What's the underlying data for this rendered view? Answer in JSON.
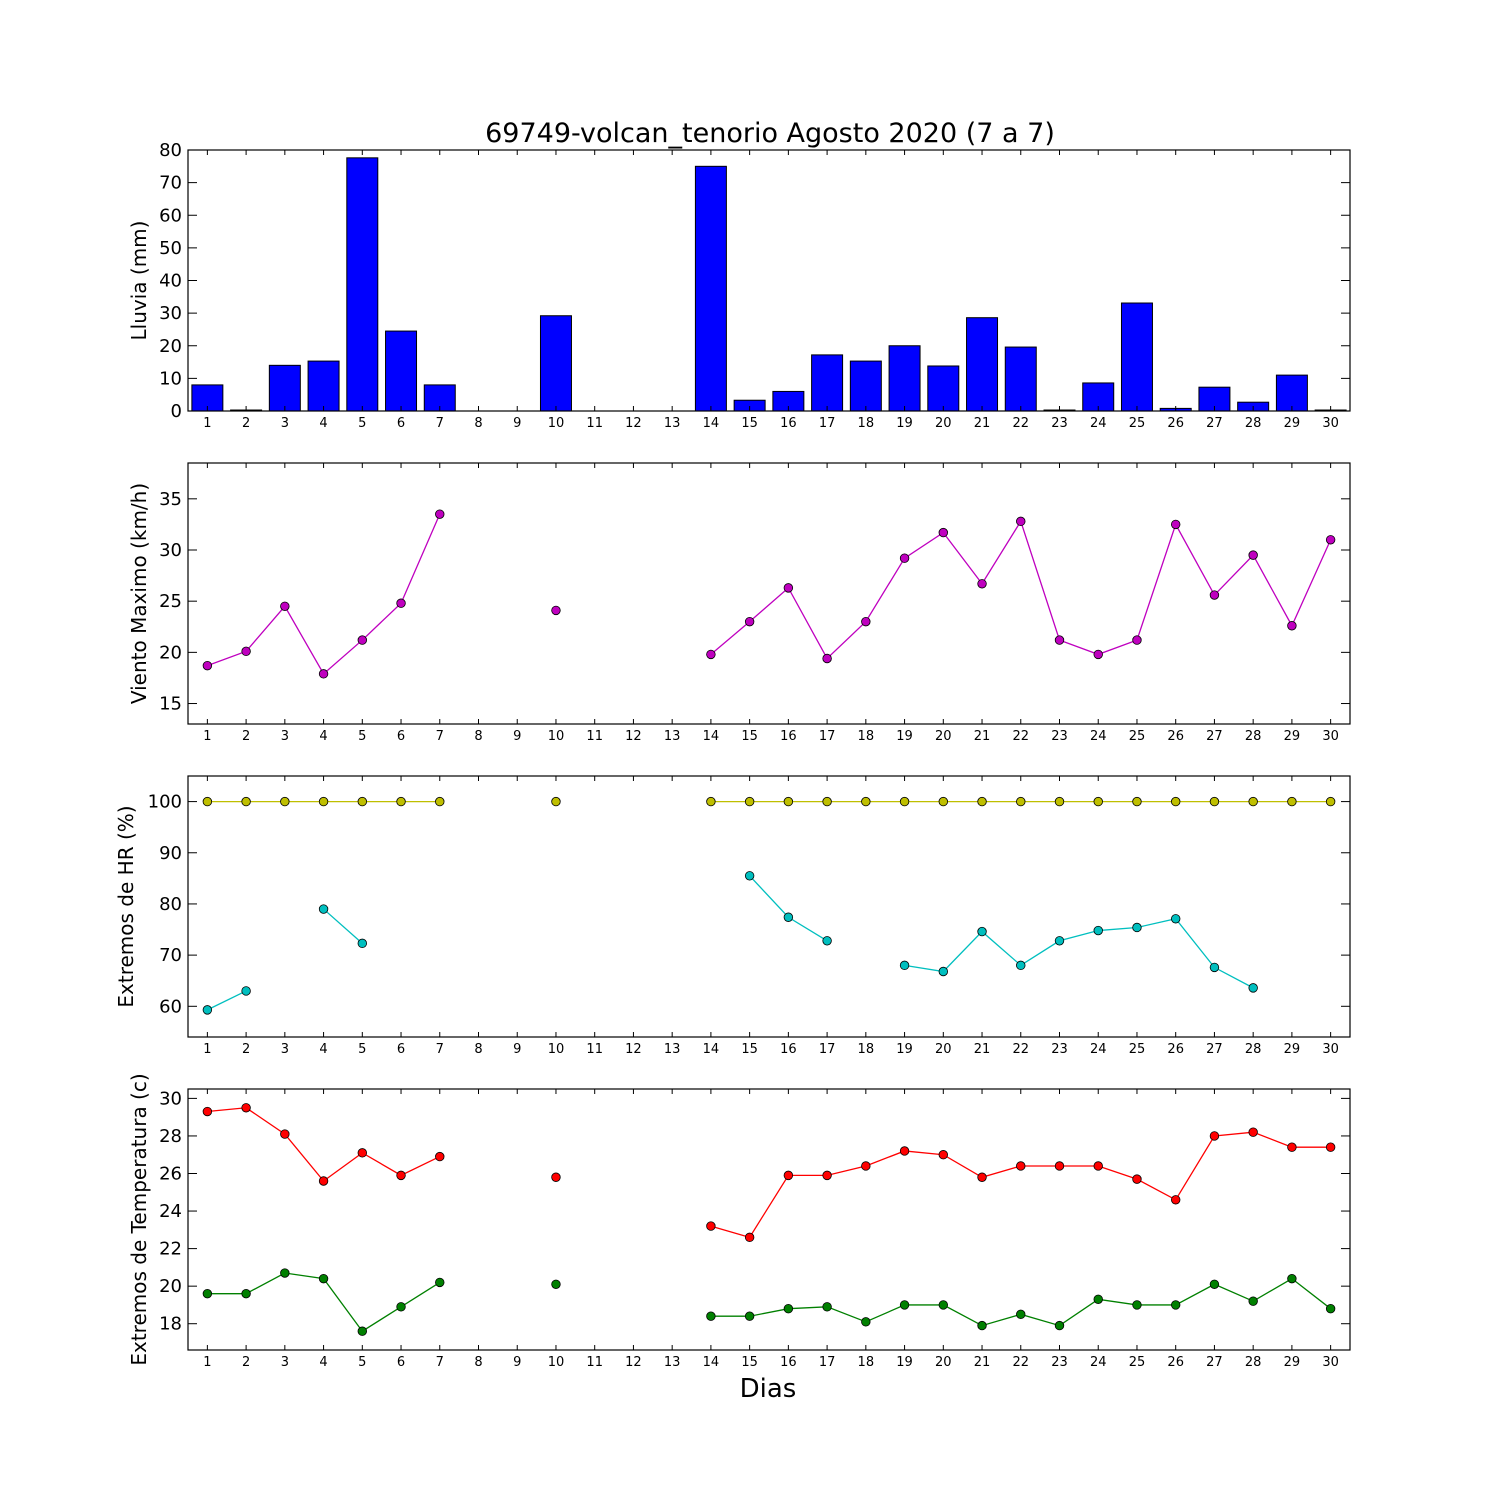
{
  "figure_title": "69749-volcan_tenorio Agosto 2020  (7 a 7)",
  "xlabel": "Dias",
  "colors": {
    "bars": "#0000ff",
    "wind": "#bf00bf",
    "hr_max": "#bfbf00",
    "hr_min": "#00bfbf",
    "temp_max": "#ff0000",
    "temp_min": "#008000"
  },
  "chart_data": [
    {
      "type": "bar",
      "ylabel": "Lluvia (mm)",
      "ylim": [
        0,
        80
      ],
      "yticks": [
        0,
        10,
        20,
        30,
        40,
        50,
        60,
        70,
        80
      ],
      "categories": [
        1,
        2,
        3,
        4,
        5,
        6,
        7,
        8,
        9,
        10,
        11,
        12,
        13,
        14,
        15,
        16,
        17,
        18,
        19,
        20,
        21,
        22,
        23,
        24,
        25,
        26,
        27,
        28,
        29,
        30
      ],
      "series": [
        {
          "color_key": "bars",
          "values": [
            8,
            0.3,
            14,
            15.3,
            77.6,
            24.5,
            8,
            0,
            0,
            29.2,
            0,
            0,
            0,
            75,
            3.3,
            6,
            17.2,
            15.3,
            20,
            13.8,
            28.6,
            19.6,
            0.3,
            8.6,
            33.1,
            0.8,
            7.3,
            2.7,
            11,
            0.3
          ]
        }
      ]
    },
    {
      "type": "line",
      "ylabel": "Viento Maximo (km/h)",
      "ylim": [
        13,
        38.5
      ],
      "yticks": [
        15,
        20,
        25,
        30,
        35
      ],
      "x": [
        1,
        2,
        3,
        4,
        5,
        6,
        7,
        8,
        9,
        10,
        11,
        12,
        13,
        14,
        15,
        16,
        17,
        18,
        19,
        20,
        21,
        22,
        23,
        24,
        25,
        26,
        27,
        28,
        29,
        30
      ],
      "series": [
        {
          "color_key": "wind",
          "values": [
            18.7,
            20.1,
            24.5,
            17.9,
            21.2,
            24.8,
            33.5,
            null,
            null,
            24.1,
            null,
            null,
            null,
            19.8,
            23.0,
            26.3,
            19.4,
            23.0,
            29.2,
            31.7,
            26.7,
            32.8,
            21.2,
            19.8,
            21.2,
            32.5,
            25.6,
            29.5,
            22.6,
            31.0
          ]
        }
      ]
    },
    {
      "type": "line",
      "ylabel": "Extremos de HR (%)",
      "ylim": [
        54,
        105
      ],
      "yticks": [
        60,
        70,
        80,
        90,
        100
      ],
      "x": [
        1,
        2,
        3,
        4,
        5,
        6,
        7,
        8,
        9,
        10,
        11,
        12,
        13,
        14,
        15,
        16,
        17,
        18,
        19,
        20,
        21,
        22,
        23,
        24,
        25,
        26,
        27,
        28,
        29,
        30
      ],
      "series": [
        {
          "color_key": "hr_max",
          "values": [
            100,
            100,
            100,
            100,
            100,
            100,
            100,
            null,
            null,
            100,
            null,
            null,
            null,
            100,
            100,
            100,
            100,
            100,
            100,
            100,
            100,
            100,
            100,
            100,
            100,
            100,
            100,
            100,
            100,
            100
          ]
        },
        {
          "color_key": "hr_min",
          "values": [
            59.3,
            63.0,
            null,
            79.0,
            72.3,
            null,
            null,
            null,
            null,
            null,
            null,
            null,
            null,
            null,
            85.5,
            77.4,
            72.8,
            null,
            68.0,
            66.8,
            74.6,
            68.0,
            72.8,
            74.8,
            75.4,
            77.1,
            67.6,
            63.6,
            null,
            null
          ]
        }
      ]
    },
    {
      "type": "line",
      "ylabel": "Extremos de Temperatura (c)",
      "ylim": [
        16.6,
        30.5
      ],
      "yticks": [
        18,
        20,
        22,
        24,
        26,
        28,
        30
      ],
      "x": [
        1,
        2,
        3,
        4,
        5,
        6,
        7,
        8,
        9,
        10,
        11,
        12,
        13,
        14,
        15,
        16,
        17,
        18,
        19,
        20,
        21,
        22,
        23,
        24,
        25,
        26,
        27,
        28,
        29,
        30
      ],
      "series": [
        {
          "color_key": "temp_max",
          "values": [
            29.3,
            29.5,
            28.1,
            25.6,
            27.1,
            25.9,
            26.9,
            null,
            null,
            25.8,
            null,
            null,
            null,
            23.2,
            22.6,
            25.9,
            25.9,
            26.4,
            27.2,
            27.0,
            25.8,
            26.4,
            26.4,
            26.4,
            25.7,
            24.6,
            28.0,
            28.2,
            27.4,
            27.4
          ]
        },
        {
          "color_key": "temp_min",
          "values": [
            19.6,
            19.6,
            20.7,
            20.4,
            17.6,
            18.9,
            20.2,
            null,
            null,
            20.1,
            null,
            null,
            null,
            18.4,
            18.4,
            18.8,
            18.9,
            18.1,
            19.0,
            19.0,
            17.9,
            18.5,
            17.9,
            19.3,
            19.0,
            19.0,
            20.1,
            19.2,
            20.4,
            18.8
          ]
        }
      ]
    }
  ]
}
